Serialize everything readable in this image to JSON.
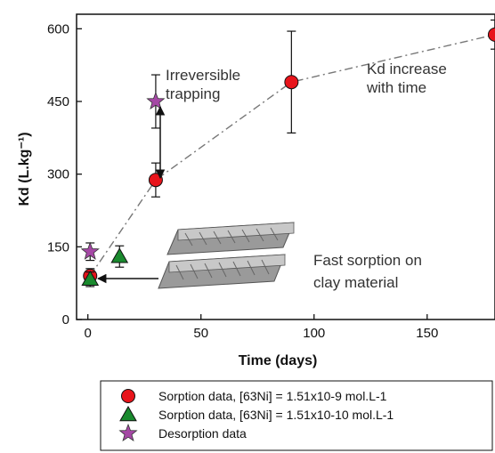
{
  "chart_data": {
    "type": "scatter",
    "xlabel": "Time (days)",
    "ylabel": "Kd (L.kg⁻¹)",
    "xlim": [
      -5,
      180
    ],
    "ylim": [
      0,
      630
    ],
    "xticks": [
      0,
      50,
      100,
      150
    ],
    "yticks": [
      0,
      150,
      300,
      450,
      600
    ],
    "grid": false,
    "legend_position": "bottom",
    "series": [
      {
        "name": "Sorption data, [63Ni] = 1.51x10-9 mol.L-1",
        "marker": "circle",
        "color": "#e8141b",
        "points": [
          {
            "x": 1,
            "y": 90,
            "err": 15
          },
          {
            "x": 30,
            "y": 288,
            "err": 35
          },
          {
            "x": 90,
            "y": 490,
            "err": 105
          },
          {
            "x": 180,
            "y": 588,
            "err": 30
          }
        ]
      },
      {
        "name": "Sorption data, [63Ni] = 1.51x10-10 mol.L-1",
        "marker": "triangle",
        "color": "#1a8a2e",
        "points": [
          {
            "x": 1,
            "y": 83,
            "err": 15
          },
          {
            "x": 14,
            "y": 130,
            "err": 22
          }
        ]
      },
      {
        "name": "Desorption data",
        "marker": "star",
        "color": "#a548a5",
        "points": [
          {
            "x": 1,
            "y": 140,
            "err": 18
          },
          {
            "x": 30,
            "y": 450,
            "err": 55
          }
        ]
      }
    ],
    "trend_line": [
      {
        "x": 1,
        "y": 90
      },
      {
        "x": 30,
        "y": 288
      },
      {
        "x": 90,
        "y": 490
      },
      {
        "x": 180,
        "y": 588
      }
    ],
    "annotations": [
      {
        "line1": "Irreversible",
        "line2": "trapping"
      },
      {
        "line1": "Kd increase",
        "line2": "with time"
      },
      {
        "line1": "Fast sorption on",
        "line2": "clay material"
      }
    ]
  }
}
